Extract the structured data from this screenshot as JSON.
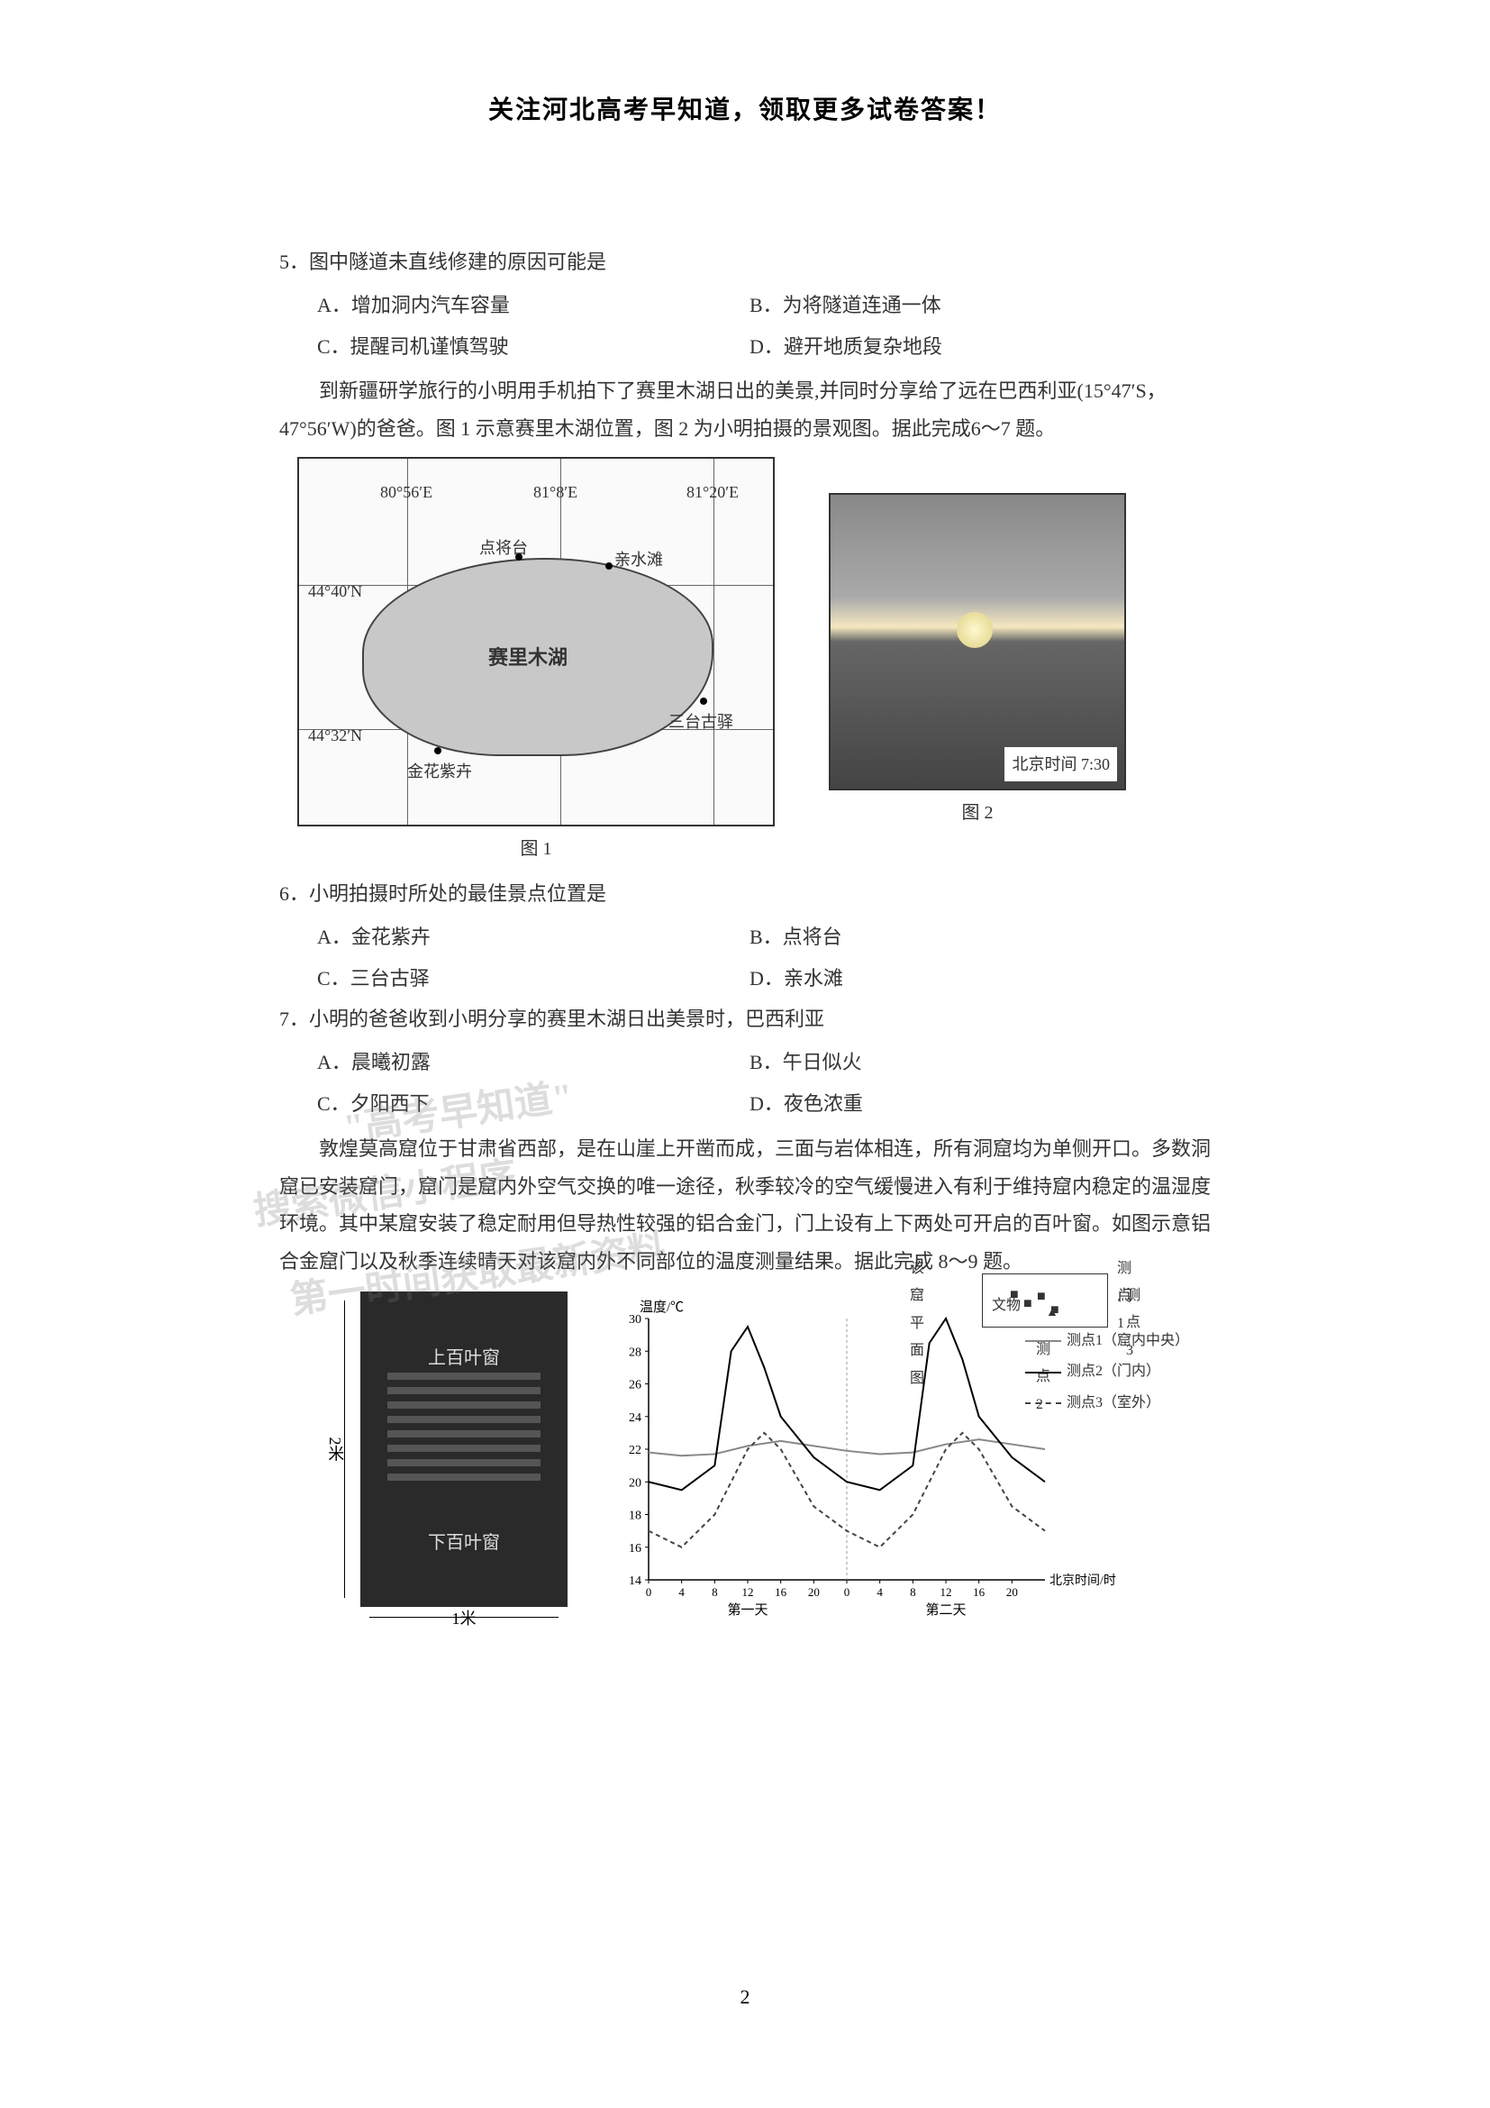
{
  "header": "关注河北高考早知道，领取更多试卷答案！",
  "q5": {
    "stem": "5．图中隧道未直线修建的原因可能是",
    "A": "A．增加洞内汽车容量",
    "B": "B．为将隧道连通一体",
    "C": "C．提醒司机谨慎驾驶",
    "D": "D．避开地质复杂地段"
  },
  "passage67": "到新疆研学旅行的小明用手机拍下了赛里木湖日出的美景,并同时分享给了远在巴西利亚(15°47′S，47°56′W)的爸爸。图 1 示意赛里木湖位置，图 2 为小明拍摄的景观图。据此完成6～7 题。",
  "map": {
    "lon1": "80°56′E",
    "lon2": "81°8′E",
    "lon3": "81°20′E",
    "lat1": "44°40′N",
    "lat2": "44°32′N",
    "lake_name": "赛里木湖",
    "spot1": "点将台",
    "spot2": "亲水滩",
    "spot3": "三台古驿",
    "spot4": "金花紫卉",
    "caption": "图 1"
  },
  "photo": {
    "time_label": "北京时间 7:30",
    "caption": "图 2"
  },
  "q6": {
    "stem": "6．小明拍摄时所处的最佳景点位置是",
    "A": "A．金花紫卉",
    "B": "B．点将台",
    "C": "C．三台古驿",
    "D": "D．亲水滩"
  },
  "q7": {
    "stem": "7．小明的爸爸收到小明分享的赛里木湖日出美景时，巴西利亚",
    "A": "A．晨曦初露",
    "B": "B．午日似火",
    "C": "C．夕阳西下",
    "D": "D．夜色浓重"
  },
  "passage89": "敦煌莫高窟位于甘肃省西部，是在山崖上开凿而成，三面与岩体相连，所有洞窟均为单侧开口。多数洞窟已安装窟门，窟门是窟内外空气交换的唯一途径，秋季较冷的空气缓慢进入有利于维持窟内稳定的温湿度环境。其中某窟安装了稳定耐用但导热性较强的铝合金门，门上设有上下两处可开启的百叶窗。如图示意铝合金窟门以及秋季连续晴天对该窟内外不同部位的温度测量结果。据此完成 8～9 题。",
  "door": {
    "upper": "上百叶窗",
    "lower": "下百叶窗",
    "height": "2米",
    "width": "1米"
  },
  "chart": {
    "type": "line",
    "ylabel": "温度/℃",
    "xlabel": "北京时间/时",
    "yticks": [
      14,
      16,
      18,
      20,
      22,
      24,
      26,
      28,
      30
    ],
    "ylim": [
      14,
      30
    ],
    "xticks_day": [
      0,
      4,
      8,
      12,
      16,
      20
    ],
    "day1_label": "第一天",
    "day2_label": "第二天",
    "plan_title": "该窟平面图",
    "plan_wenwu": "文物",
    "plan_door": "门",
    "plan_pt1": "测点1",
    "plan_pt2": "测点2",
    "plan_pt3": "测点3",
    "legend1": "测点1（窟内中央）",
    "legend2": "测点2（门内）",
    "legend3": "测点3（室外）",
    "colors": {
      "line1": "#888888",
      "line2": "#000000",
      "line3": "#444444",
      "grid": "#cccccc",
      "axis": "#000000"
    },
    "series1": {
      "x": [
        0,
        4,
        8,
        12,
        16,
        20,
        24,
        28,
        32,
        36,
        40,
        44,
        48
      ],
      "y": [
        21.8,
        21.6,
        21.7,
        22.2,
        22.5,
        22.2,
        21.9,
        21.7,
        21.8,
        22.3,
        22.6,
        22.3,
        22.0
      ]
    },
    "series2": {
      "x": [
        0,
        4,
        8,
        10,
        12,
        14,
        16,
        20,
        24,
        28,
        32,
        34,
        36,
        38,
        40,
        44,
        48
      ],
      "y": [
        20,
        19.5,
        21,
        28,
        29.5,
        27,
        24,
        21.5,
        20,
        19.5,
        21,
        28.5,
        30,
        27.5,
        24,
        21.5,
        20
      ]
    },
    "series3": {
      "x": [
        0,
        4,
        8,
        12,
        14,
        16,
        20,
        24,
        28,
        32,
        36,
        38,
        40,
        44,
        48
      ],
      "y": [
        17,
        16,
        18,
        22,
        23,
        22,
        18.5,
        17,
        16,
        18,
        22,
        23,
        22,
        18.5,
        17
      ]
    }
  },
  "watermarks": {
    "w1": "搜索微信小程序",
    "w2": "\"高考早知道\"",
    "w3": "第一时间获取最新资料"
  },
  "page_num": "2"
}
